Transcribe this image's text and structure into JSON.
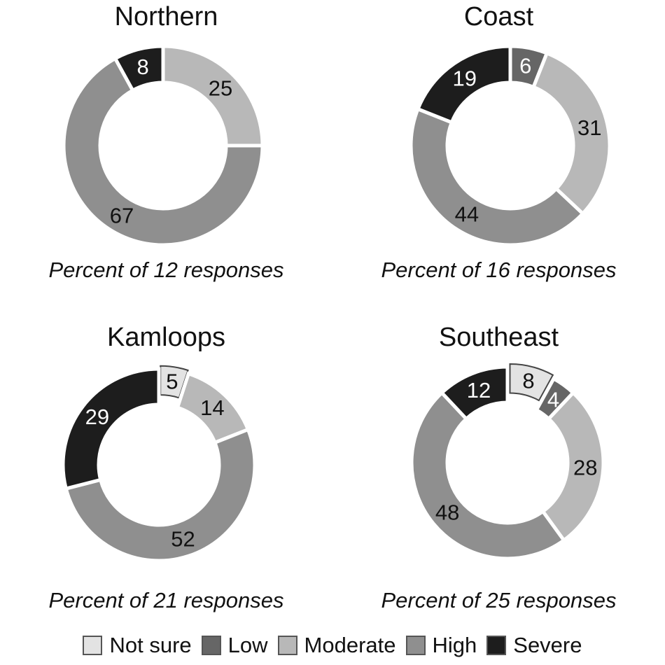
{
  "chart_data": [
    {
      "type": "donut",
      "title": "Northern",
      "caption": "Percent of 12 responses",
      "categories": [
        "Not sure",
        "Low",
        "Moderate",
        "High",
        "Severe"
      ],
      "values": [
        0,
        0,
        25,
        67,
        8
      ]
    },
    {
      "type": "donut",
      "title": "Coast",
      "caption": "Percent of 16 responses",
      "categories": [
        "Not sure",
        "Low",
        "Moderate",
        "High",
        "Severe"
      ],
      "values": [
        0,
        6,
        31,
        44,
        19
      ]
    },
    {
      "type": "donut",
      "title": "Kamloops",
      "caption": "Percent of 21 responses",
      "categories": [
        "Not sure",
        "Low",
        "Moderate",
        "High",
        "Severe"
      ],
      "values": [
        5,
        0,
        14,
        52,
        29
      ],
      "exploded": [
        "Not sure"
      ]
    },
    {
      "type": "donut",
      "title": "Southeast",
      "caption": "Percent of 25 responses",
      "categories": [
        "Not sure",
        "Low",
        "Moderate",
        "High",
        "Severe"
      ],
      "values": [
        8,
        4,
        28,
        48,
        12
      ],
      "exploded": [
        "Not sure"
      ]
    }
  ],
  "legend": {
    "position": "bottom",
    "items": [
      {
        "label": "Not sure",
        "color": "#e3e3e3"
      },
      {
        "label": "Low",
        "color": "#666666"
      },
      {
        "label": "Moderate",
        "color": "#b8b8b8"
      },
      {
        "label": "High",
        "color": "#8f8f8f"
      },
      {
        "label": "Severe",
        "color": "#1d1d1d"
      }
    ]
  }
}
